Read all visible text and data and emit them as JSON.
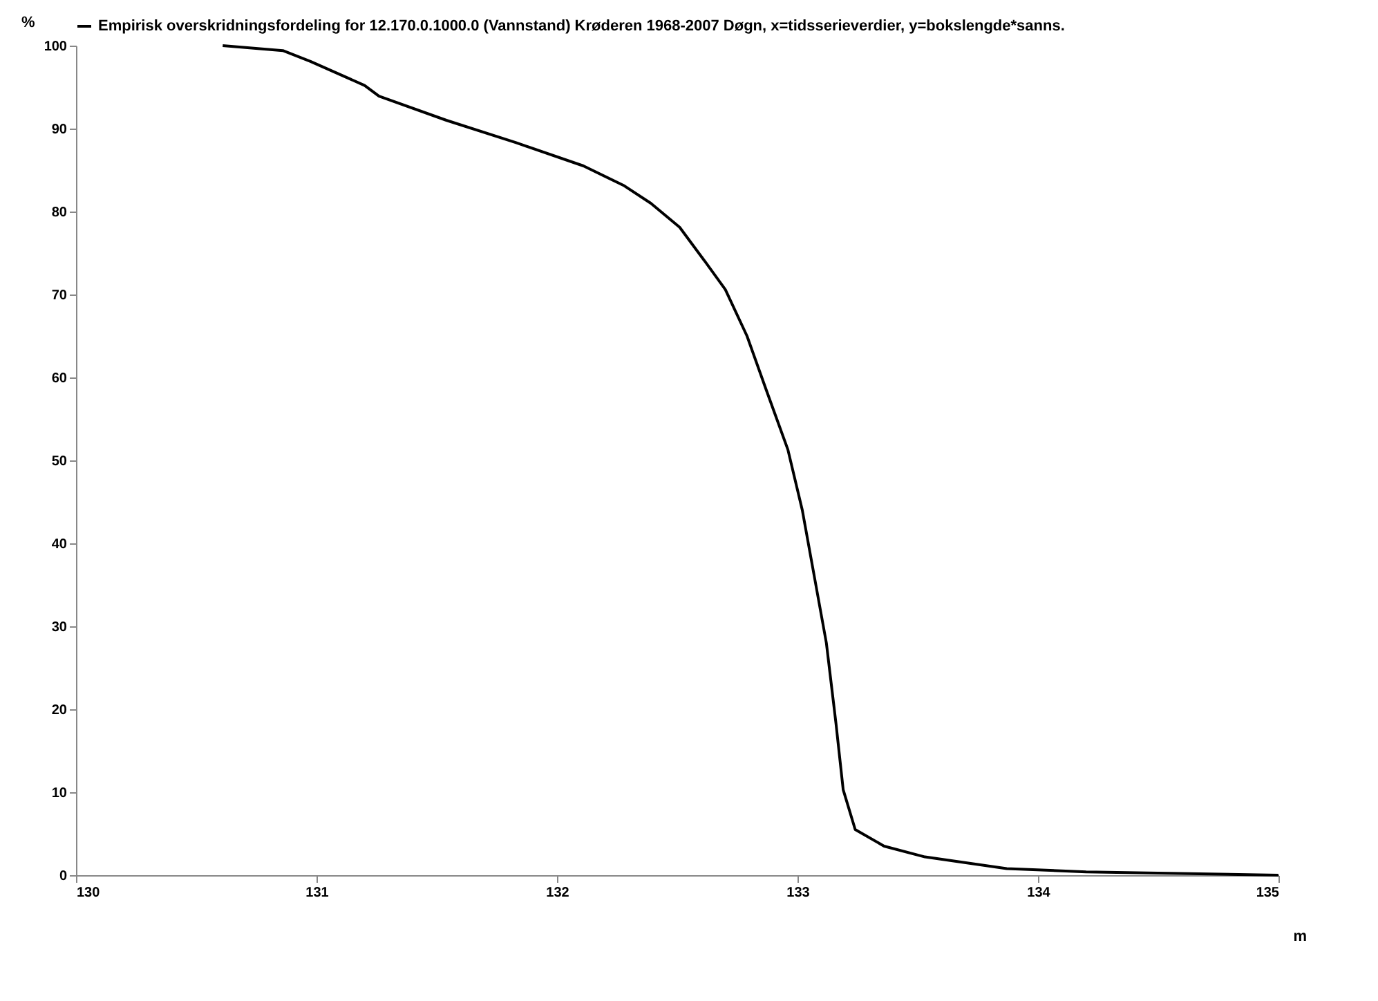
{
  "chart_data": {
    "type": "line",
    "xlabel": "m",
    "ylabel": "%",
    "x": [
      130.61,
      130.86,
      130.975,
      131.2,
      131.26,
      131.54,
      131.83,
      132.11,
      132.28,
      132.39,
      132.51,
      132.62,
      132.7,
      132.79,
      132.87,
      132.96,
      133.02,
      133.07,
      133.12,
      133.16,
      133.19,
      133.24,
      133.36,
      133.53,
      133.87,
      134.2,
      135
    ],
    "series": [
      {
        "name": "Empirisk overskridningsfordeling for 12.170.0.1000.0 (Vannstand) Krøderen  1968-2007 Døgn, x=tidsserieverdier, y=bokslengde*sanns.",
        "color": "#000000",
        "values": [
          100,
          99.4,
          98.1,
          95.2,
          93.9,
          91,
          88.3,
          85.5,
          83.1,
          81,
          78.1,
          73.8,
          70.6,
          65,
          58.5,
          51.3,
          44,
          36,
          28,
          18.3,
          10.3,
          5.5,
          3.5,
          2.2,
          0.8,
          0.4,
          0
        ]
      }
    ],
    "xlim": [
      130,
      135
    ],
    "xticks": [
      130,
      131,
      132,
      133,
      134,
      135
    ],
    "ylim": [
      0,
      100
    ],
    "yticks": [
      0,
      10,
      20,
      30,
      40,
      50,
      60,
      70,
      80,
      90,
      100
    ],
    "legend": "top",
    "grid": false,
    "marker": "none",
    "line_style": "solid"
  }
}
